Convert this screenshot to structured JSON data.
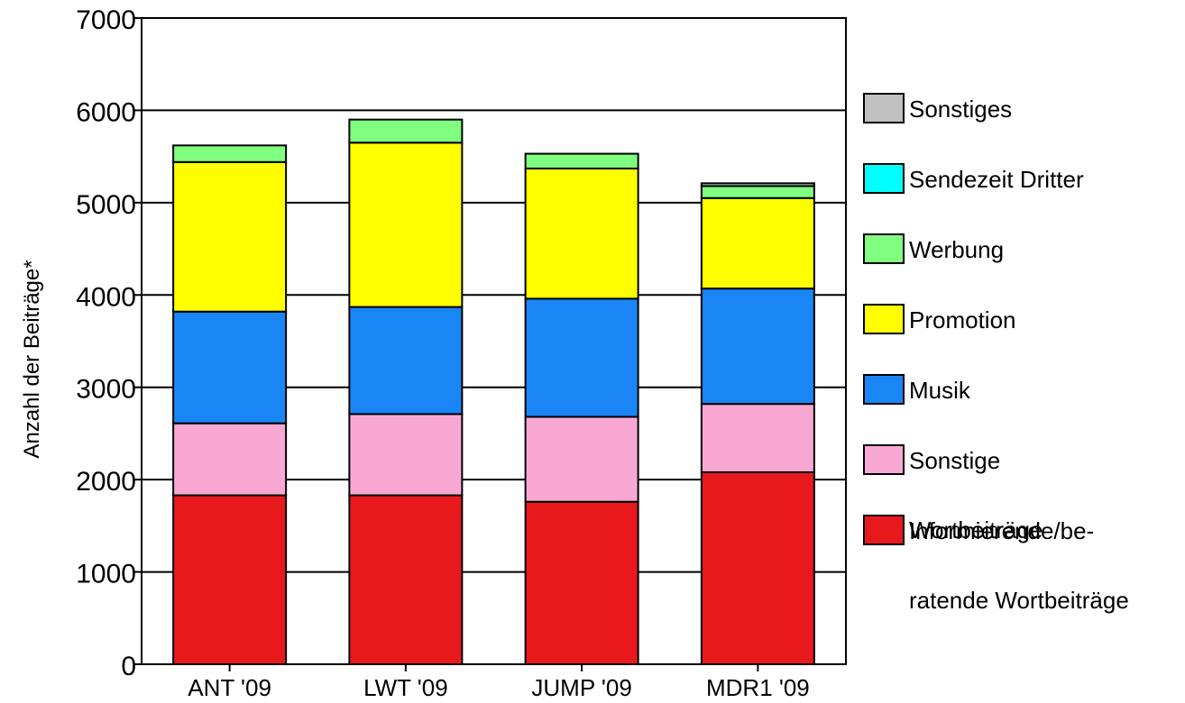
{
  "chart_data": {
    "type": "bar",
    "stacked": true,
    "ylabel": "Anzahl der Beiträge*",
    "xlabel": "",
    "ylim": [
      0,
      7000
    ],
    "yticks": [
      0,
      1000,
      2000,
      3000,
      4000,
      5000,
      6000,
      7000
    ],
    "grid": true,
    "legend_position": "right",
    "categories": [
      "ANT '09",
      "LWT '09",
      "JUMP '09",
      "MDR1 '09"
    ],
    "series": [
      {
        "name": "Informierende/be- ratende Wortbeiträge",
        "legend_lines": [
          "Informierende/be-",
          "ratende Wortbeiträge"
        ],
        "color": "#e8191c",
        "values": [
          1830,
          1830,
          1760,
          2080
        ]
      },
      {
        "name": "Sonstige Wortbeiträge",
        "legend_lines": [
          "Sonstige",
          "Wortbeiträge"
        ],
        "color": "#f9a8d4",
        "values": [
          780,
          880,
          920,
          740
        ]
      },
      {
        "name": "Musik",
        "legend_lines": [
          "Musik"
        ],
        "color": "#1a86f5",
        "values": [
          1210,
          1160,
          1280,
          1250
        ]
      },
      {
        "name": "Promotion",
        "legend_lines": [
          "Promotion"
        ],
        "color": "#ffff00",
        "values": [
          1620,
          1780,
          1410,
          980
        ]
      },
      {
        "name": "Werbung",
        "legend_lines": [
          "Werbung"
        ],
        "color": "#80ff80",
        "values": [
          180,
          250,
          160,
          130
        ]
      },
      {
        "name": "Sendezeit Dritter",
        "legend_lines": [
          "Sendezeit Dritter"
        ],
        "color": "#00ffff",
        "values": [
          0,
          0,
          0,
          0
        ]
      },
      {
        "name": "Sonstiges",
        "legend_lines": [
          "Sonstiges"
        ],
        "color": "#c0c0c0",
        "values": [
          0,
          0,
          0,
          30
        ]
      }
    ]
  }
}
